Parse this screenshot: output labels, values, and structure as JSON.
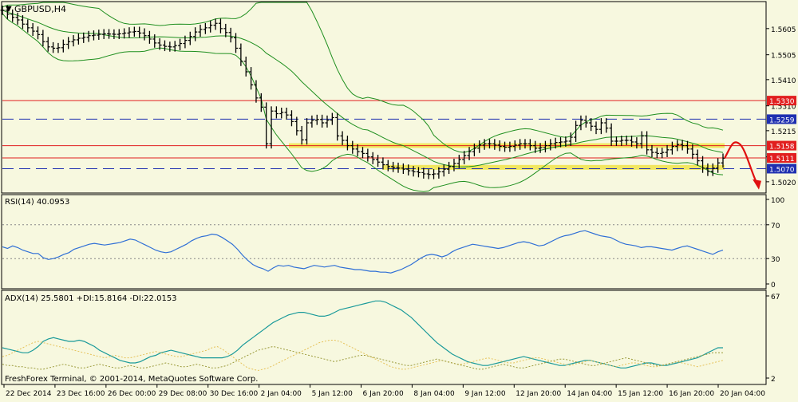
{
  "window": {
    "symbol_label": "GBPUSD,H4",
    "copyright": "FreshForex Terminal, © 2001-2014, MetaQuotes Software Corp."
  },
  "colors": {
    "background": "#f7f8df",
    "grid": "#000000",
    "bollinger": "#1f8f1f",
    "rsi_line": "#2f6fd6",
    "adx_main": "#1a9a9a",
    "plus_di": "#e6c25a",
    "minus_di": "#9a9a3a",
    "resistance": "#e11f1f",
    "support_dashed": "#1e2fb0",
    "highlight": "#f0e34a",
    "forecast_arrow": "#e01010"
  },
  "chart_data": [
    {
      "type": "line",
      "panel": "price",
      "title": "GBPUSD,H4",
      "chart_style": "OHLC bars with Bollinger Bands",
      "x_ticks": [
        "22 Dec 2014",
        "23 Dec 16:00",
        "26 Dec 00:00",
        "29 Dec 08:00",
        "30 Dec 16:00",
        "2 Jan 04:00",
        "5 Jan 12:00",
        "6 Jan 20:00",
        "8 Jan 04:00",
        "9 Jan 12:00",
        "12 Jan 20:00",
        "14 Jan 04:00",
        "15 Jan 12:00",
        "16 Jan 20:00",
        "20 Jan 04:00"
      ],
      "y_ticks": [
        1.5605,
        1.5505,
        1.541,
        1.531,
        1.5215,
        1.5115,
        1.502
      ],
      "ylim": [
        1.498,
        1.5705
      ],
      "levels": [
        {
          "value": 1.533,
          "label": "1.5330",
          "style": "solid",
          "color": "#e11f1f"
        },
        {
          "value": 1.5259,
          "label": "1.5259",
          "style": "dashed",
          "color": "#1e2fb0"
        },
        {
          "value": 1.5158,
          "label": "1.5158",
          "style": "solid",
          "color": "#e11f1f"
        },
        {
          "value": 1.5111,
          "label": "1.5111",
          "style": "solid",
          "color": "#e11f1f"
        },
        {
          "value": 1.507,
          "label": "1.5070",
          "style": "dashed",
          "color": "#1e2fb0"
        }
      ],
      "highlight_levels": [
        1.5158,
        1.5075
      ],
      "close_series": [
        1.5675,
        1.566,
        1.5648,
        1.5638,
        1.5622,
        1.5608,
        1.5595,
        1.5582,
        1.5555,
        1.5535,
        1.553,
        1.5532,
        1.5545,
        1.5555,
        1.5562,
        1.5568,
        1.5572,
        1.5578,
        1.558,
        1.5583,
        1.5585,
        1.5584,
        1.5583,
        1.5585,
        1.5588,
        1.5592,
        1.5594,
        1.5588,
        1.5578,
        1.5565,
        1.555,
        1.5542,
        1.5537,
        1.5535,
        1.554,
        1.5548,
        1.556,
        1.5575,
        1.5592,
        1.5602,
        1.5608,
        1.5618,
        1.5625,
        1.5605,
        1.559,
        1.557,
        1.553,
        1.548,
        1.544,
        1.539,
        1.534,
        1.5305,
        1.5165,
        1.529,
        1.528,
        1.5285,
        1.5275,
        1.525,
        1.5215,
        1.518,
        1.5245,
        1.5255,
        1.5258,
        1.5245,
        1.5255,
        1.5265,
        1.5195,
        1.5178,
        1.5158,
        1.5145,
        1.5135,
        1.5128,
        1.5115,
        1.5105,
        1.5095,
        1.5085,
        1.5078,
        1.5075,
        1.5072,
        1.5068,
        1.5062,
        1.5058,
        1.5055,
        1.505,
        1.5048,
        1.505,
        1.5058,
        1.5068,
        1.5078,
        1.509,
        1.5105,
        1.512,
        1.5135,
        1.5148,
        1.516,
        1.5165,
        1.5165,
        1.516,
        1.5155,
        1.5152,
        1.5155,
        1.516,
        1.5165,
        1.5165,
        1.5158,
        1.5148,
        1.515,
        1.5158,
        1.5165,
        1.517,
        1.5172,
        1.5175,
        1.519,
        1.5235,
        1.5255,
        1.5245,
        1.5232,
        1.522,
        1.5245,
        1.5225,
        1.5175,
        1.5175,
        1.5178,
        1.5178,
        1.5172,
        1.5165,
        1.5195,
        1.5142,
        1.5132,
        1.5128,
        1.5132,
        1.5142,
        1.5155,
        1.5162,
        1.5158,
        1.5145,
        1.5125,
        1.51,
        1.5072,
        1.506,
        1.5072,
        1.5092,
        1.511
      ]
    },
    {
      "type": "line",
      "panel": "rsi",
      "label": "RSI(14) 40.0953",
      "ylim": [
        0,
        100
      ],
      "y_ticks": [
        100,
        70,
        30,
        0
      ],
      "levels": [
        70,
        30
      ],
      "values": [
        44,
        42,
        45,
        43,
        40,
        38,
        36,
        36,
        31,
        29,
        30,
        32,
        35,
        37,
        41,
        43,
        45,
        47,
        48,
        47,
        46,
        47,
        48,
        49,
        51,
        53,
        52,
        49,
        46,
        43,
        40,
        38,
        37,
        38,
        41,
        44,
        47,
        51,
        54,
        56,
        57,
        59,
        58,
        55,
        51,
        47,
        41,
        34,
        28,
        23,
        20,
        18,
        15,
        19,
        22,
        21,
        22,
        20,
        19,
        18,
        20,
        22,
        21,
        20,
        21,
        22,
        20,
        19,
        18,
        17,
        17,
        16,
        15,
        15,
        14,
        14,
        13,
        15,
        17,
        20,
        23,
        27,
        31,
        34,
        35,
        34,
        32,
        34,
        38,
        41,
        43,
        45,
        47,
        46,
        45,
        44,
        43,
        42,
        43,
        45,
        47,
        49,
        50,
        49,
        47,
        45,
        46,
        49,
        52,
        55,
        57,
        58,
        60,
        62,
        63,
        61,
        59,
        57,
        56,
        55,
        52,
        49,
        47,
        46,
        45,
        43,
        44,
        44,
        43,
        42,
        41,
        40,
        42,
        44,
        45,
        43,
        41,
        39,
        37,
        35,
        38,
        40
      ]
    },
    {
      "type": "line",
      "panel": "adx",
      "label": "ADX(14) 25.5801 +DI:15.8164 -DI:22.0153",
      "y_ticks": [
        67,
        2
      ],
      "ylim": [
        2,
        67
      ],
      "series": [
        {
          "name": "ADX",
          "values": [
            26,
            25,
            24,
            23,
            22,
            22,
            24,
            27,
            31,
            33,
            34,
            33,
            32,
            31,
            31,
            32,
            31,
            29,
            27,
            24,
            22,
            20,
            18,
            16,
            15,
            14,
            14,
            15,
            17,
            19,
            20,
            22,
            23,
            24,
            23,
            22,
            21,
            20,
            19,
            18,
            18,
            18,
            18,
            18,
            19,
            21,
            24,
            28,
            31,
            34,
            37,
            40,
            43,
            46,
            48,
            50,
            52,
            53,
            54,
            54,
            53,
            52,
            51,
            51,
            52,
            54,
            56,
            57,
            58,
            59,
            60,
            61,
            62,
            63,
            63,
            62,
            60,
            58,
            56,
            53,
            50,
            46,
            42,
            38,
            34,
            30,
            27,
            24,
            21,
            19,
            17,
            15,
            14,
            13,
            12,
            12,
            13,
            14,
            15,
            16,
            17,
            18,
            19,
            18,
            17,
            16,
            15,
            14,
            13,
            12,
            12,
            13,
            14,
            15,
            16,
            16,
            15,
            14,
            13,
            12,
            11,
            10,
            10,
            11,
            12,
            13,
            14,
            14,
            13,
            12,
            12,
            13,
            14,
            15,
            16,
            17,
            18,
            20,
            22,
            24,
            26,
            26
          ]
        },
        {
          "name": "+DI",
          "values": [
            19,
            20,
            22,
            24,
            26,
            28,
            30,
            31,
            30,
            29,
            28,
            27,
            26,
            25,
            24,
            23,
            22,
            21,
            20,
            19,
            18,
            19,
            20,
            19,
            18,
            18,
            19,
            20,
            21,
            22,
            23,
            22,
            21,
            20,
            19,
            19,
            20,
            21,
            22,
            23,
            24,
            26,
            27,
            25,
            22,
            19,
            16,
            13,
            10,
            9,
            8,
            9,
            10,
            12,
            14,
            16,
            18,
            20,
            22,
            24,
            26,
            28,
            30,
            31,
            32,
            32,
            31,
            29,
            27,
            25,
            23,
            21,
            19,
            17,
            15,
            13,
            11,
            10,
            9,
            9,
            10,
            11,
            12,
            13,
            14,
            15,
            16,
            15,
            14,
            13,
            13,
            14,
            15,
            16,
            17,
            18,
            17,
            16,
            15,
            14,
            14,
            15,
            16,
            17,
            18,
            18,
            17,
            16,
            15,
            14,
            13,
            12,
            13,
            14,
            15,
            16,
            15,
            14,
            13,
            12,
            11,
            12,
            13,
            14,
            14,
            13,
            12,
            11,
            11,
            12,
            13,
            14,
            15,
            14,
            13,
            12,
            11,
            12,
            13,
            14,
            15,
            16
          ]
        },
        {
          "name": "-DI",
          "values": [
            13,
            12,
            12,
            11,
            11,
            10,
            10,
            9,
            9,
            10,
            11,
            12,
            13,
            12,
            11,
            10,
            10,
            11,
            12,
            13,
            12,
            11,
            10,
            10,
            11,
            12,
            11,
            10,
            10,
            11,
            12,
            13,
            14,
            13,
            12,
            11,
            11,
            12,
            13,
            12,
            11,
            10,
            10,
            11,
            12,
            14,
            16,
            18,
            20,
            22,
            24,
            25,
            26,
            27,
            26,
            25,
            24,
            23,
            22,
            21,
            20,
            19,
            18,
            17,
            16,
            15,
            16,
            17,
            18,
            19,
            20,
            20,
            19,
            18,
            17,
            16,
            15,
            14,
            13,
            12,
            12,
            13,
            14,
            15,
            16,
            17,
            16,
            15,
            14,
            13,
            12,
            11,
            10,
            9,
            9,
            10,
            11,
            12,
            13,
            12,
            11,
            10,
            10,
            11,
            12,
            13,
            14,
            15,
            16,
            17,
            17,
            16,
            15,
            14,
            13,
            12,
            12,
            13,
            14,
            15,
            16,
            17,
            18,
            17,
            16,
            15,
            14,
            13,
            12,
            12,
            13,
            14,
            15,
            16,
            17,
            18,
            19,
            20,
            21,
            22,
            22,
            22
          ]
        }
      ]
    }
  ]
}
